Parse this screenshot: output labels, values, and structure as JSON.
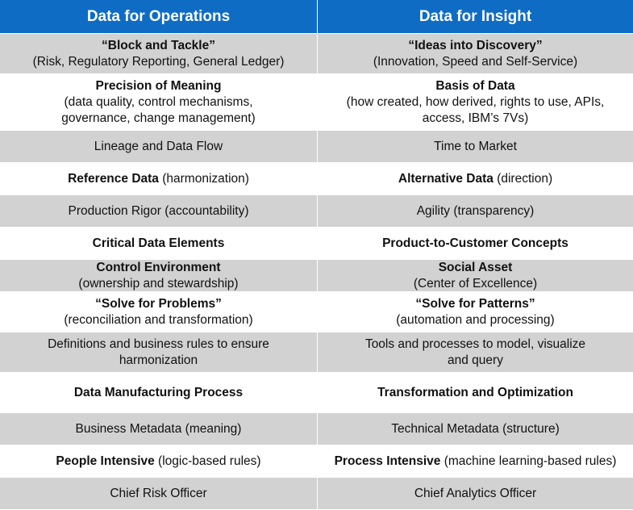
{
  "header": {
    "left": "Data for Operations",
    "right": "Data for Insight"
  },
  "rows": [
    {
      "left": {
        "bold": "“Block and Tackle”",
        "sub": "(Risk, Regulatory Reporting, General Ledger)"
      },
      "right": {
        "bold": "“Ideas into Discovery”",
        "sub": "(Innovation, Speed and Self-Service)"
      }
    },
    {
      "left": {
        "bold": "Precision of Meaning",
        "sub1": "(data quality, control mechanisms,",
        "sub2": "governance, change management)"
      },
      "right": {
        "bold": "Basis of Data",
        "sub1": "(how created, how derived, rights to use, APIs,",
        "sub2": "access, IBM’s 7Vs)"
      }
    },
    {
      "left": {
        "text": "Lineage and Data Flow"
      },
      "right": {
        "text": "Time to Market"
      }
    },
    {
      "left": {
        "bold": "Reference Data",
        "rest": " (harmonization)"
      },
      "right": {
        "bold": "Alternative Data",
        "rest": " (direction)"
      }
    },
    {
      "left": {
        "text": "Production Rigor (accountability)"
      },
      "right": {
        "text": "Agility (transparency)"
      }
    },
    {
      "left": {
        "bold": "Critical Data Elements"
      },
      "right": {
        "bold": "Product-to-Customer Concepts"
      }
    },
    {
      "left": {
        "bold": "Control Environment",
        "sub": "(ownership and stewardship)"
      },
      "right": {
        "bold": "Social Asset",
        "sub": "(Center of Excellence)"
      }
    },
    {
      "left": {
        "bold": "“Solve for Problems”",
        "sub": "(reconciliation and transformation)"
      },
      "right": {
        "bold": "“Solve for Patterns”",
        "sub": "(automation and processing)"
      }
    },
    {
      "left": {
        "line1": "Definitions and business rules to ensure",
        "line2": "harmonization"
      },
      "right": {
        "line1": "Tools and processes to model, visualize",
        "line2": "and query"
      }
    },
    {
      "left": {
        "bold": "Data Manufacturing Process"
      },
      "right": {
        "bold": "Transformation and Optimization"
      }
    },
    {
      "left": {
        "text": "Business Metadata (meaning)"
      },
      "right": {
        "text": "Technical Metadata (structure)"
      }
    },
    {
      "left": {
        "bold": "People Intensive",
        "rest": " (logic-based rules)"
      },
      "right": {
        "bold": "Process Intensive",
        "rest": " (machine learning-based rules)"
      }
    },
    {
      "left": {
        "text": "Chief Risk Officer"
      },
      "right": {
        "text": "Chief Analytics Officer"
      }
    }
  ],
  "colors": {
    "header_bg": "#0f6cc4",
    "shaded_row": "#d2d2d2",
    "plain_row": "#ffffff"
  }
}
